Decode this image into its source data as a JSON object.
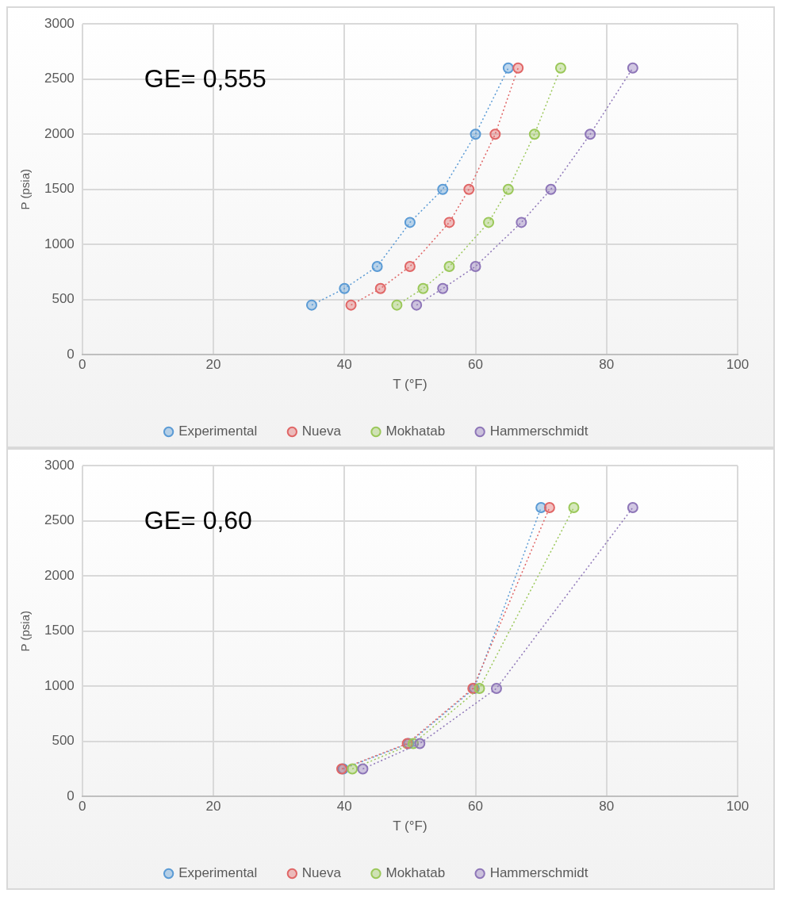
{
  "chart_data": [
    {
      "type": "line",
      "annotations": [
        "GE= 0,555"
      ],
      "xlabel": "T (°F)",
      "ylabel": "P (psia)",
      "xlim": [
        0,
        100
      ],
      "xticks": [
        0,
        20,
        40,
        60,
        80,
        100
      ],
      "ylim": [
        0,
        3000
      ],
      "yticks": [
        0,
        500,
        1000,
        1500,
        2000,
        2500,
        3000
      ],
      "grid": true,
      "legend": "bottom",
      "marker": "circle",
      "line_style": "dotted",
      "series": [
        {
          "name": "Experimental",
          "color": "#5b9bd5",
          "x": [
            35,
            40,
            45,
            50,
            55,
            60,
            65
          ],
          "values": [
            450,
            600,
            800,
            1200,
            1500,
            2000,
            2600
          ]
        },
        {
          "name": "Nueva",
          "color": "#e06666",
          "x": [
            41,
            45.5,
            50,
            56,
            59,
            63,
            66.5
          ],
          "values": [
            450,
            600,
            800,
            1200,
            1500,
            2000,
            2600
          ]
        },
        {
          "name": "Mokhatab",
          "color": "#9bc85a",
          "x": [
            48,
            52,
            56,
            62,
            65,
            69,
            73
          ],
          "values": [
            450,
            600,
            800,
            1200,
            1500,
            2000,
            2600
          ]
        },
        {
          "name": "Hammerschmidt",
          "color": "#8e76b8",
          "x": [
            51,
            55,
            60,
            67,
            71.5,
            77.5,
            84
          ],
          "values": [
            450,
            600,
            800,
            1200,
            1500,
            2000,
            2600
          ]
        }
      ]
    },
    {
      "type": "line",
      "annotations": [
        "GE= 0,60"
      ],
      "xlabel": "T (°F)",
      "ylabel": "P (psia)",
      "xlim": [
        0,
        100
      ],
      "xticks": [
        0,
        20,
        40,
        60,
        80,
        100
      ],
      "ylim": [
        0,
        3000
      ],
      "yticks": [
        0,
        500,
        1000,
        1500,
        2000,
        2500,
        3000
      ],
      "grid": true,
      "legend": "bottom",
      "marker": "circle",
      "line_style": "dotted",
      "series": [
        {
          "name": "Experimental",
          "color": "#5b9bd5",
          "x": [
            39.8,
            49.8,
            59.8,
            70
          ],
          "values": [
            250,
            480,
            980,
            2620
          ]
        },
        {
          "name": "Nueva",
          "color": "#e06666",
          "x": [
            39.6,
            49.6,
            59.6,
            71.3
          ],
          "values": [
            250,
            480,
            980,
            2620
          ]
        },
        {
          "name": "Mokhatab",
          "color": "#9bc85a",
          "x": [
            41.2,
            50.5,
            60.6,
            75
          ],
          "values": [
            250,
            480,
            980,
            2620
          ]
        },
        {
          "name": "Hammerschmidt",
          "color": "#8e76b8",
          "x": [
            42.8,
            51.5,
            63.2,
            84
          ],
          "values": [
            250,
            480,
            980,
            2620
          ]
        }
      ]
    }
  ]
}
